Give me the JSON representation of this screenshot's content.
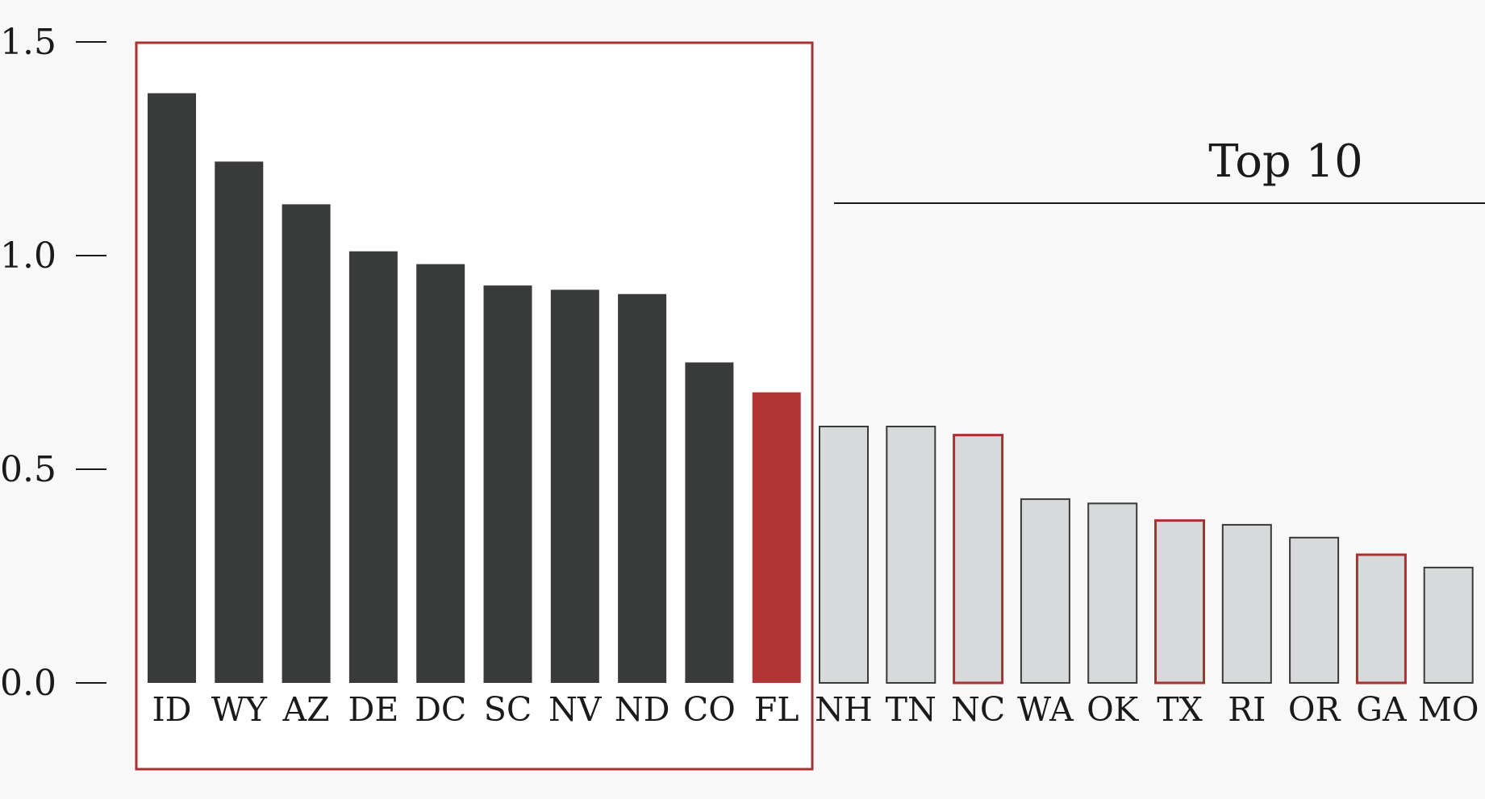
{
  "chart_data": {
    "type": "bar",
    "categories": [
      "ID",
      "WY",
      "AZ",
      "DE",
      "DC",
      "SC",
      "NV",
      "ND",
      "CO",
      "FL",
      "NH",
      "TN",
      "NC",
      "WA",
      "OK",
      "TX",
      "RI",
      "OR",
      "GA",
      "MO"
    ],
    "values": [
      1.38,
      1.22,
      1.12,
      1.01,
      0.98,
      0.93,
      0.92,
      0.91,
      0.75,
      0.68,
      0.6,
      0.6,
      0.58,
      0.43,
      0.42,
      0.38,
      0.37,
      0.34,
      0.3,
      0.27
    ],
    "ylim": [
      0,
      1.5
    ],
    "yticks": [
      "0.0",
      "0.5",
      "1.0",
      "1.5"
    ],
    "highlight_box_count": 10,
    "annotation": "Top 10",
    "title": "",
    "xlabel": "",
    "ylabel": "",
    "grid": false,
    "legend": "none",
    "colors": {
      "top": "#393a3a",
      "highlight_fill": "#b03535",
      "rest_fill": "#d8d9da",
      "rest_stroke": "#393a3a",
      "accent": "#a83232",
      "box_fill": "#ffffff"
    },
    "bar_styles": [
      "top",
      "top",
      "top",
      "top",
      "top",
      "top",
      "top",
      "top",
      "top",
      "highlight",
      "rest",
      "rest",
      "rest-accent",
      "rest",
      "rest",
      "rest-accent",
      "rest",
      "rest",
      "rest-accent",
      "rest"
    ]
  }
}
